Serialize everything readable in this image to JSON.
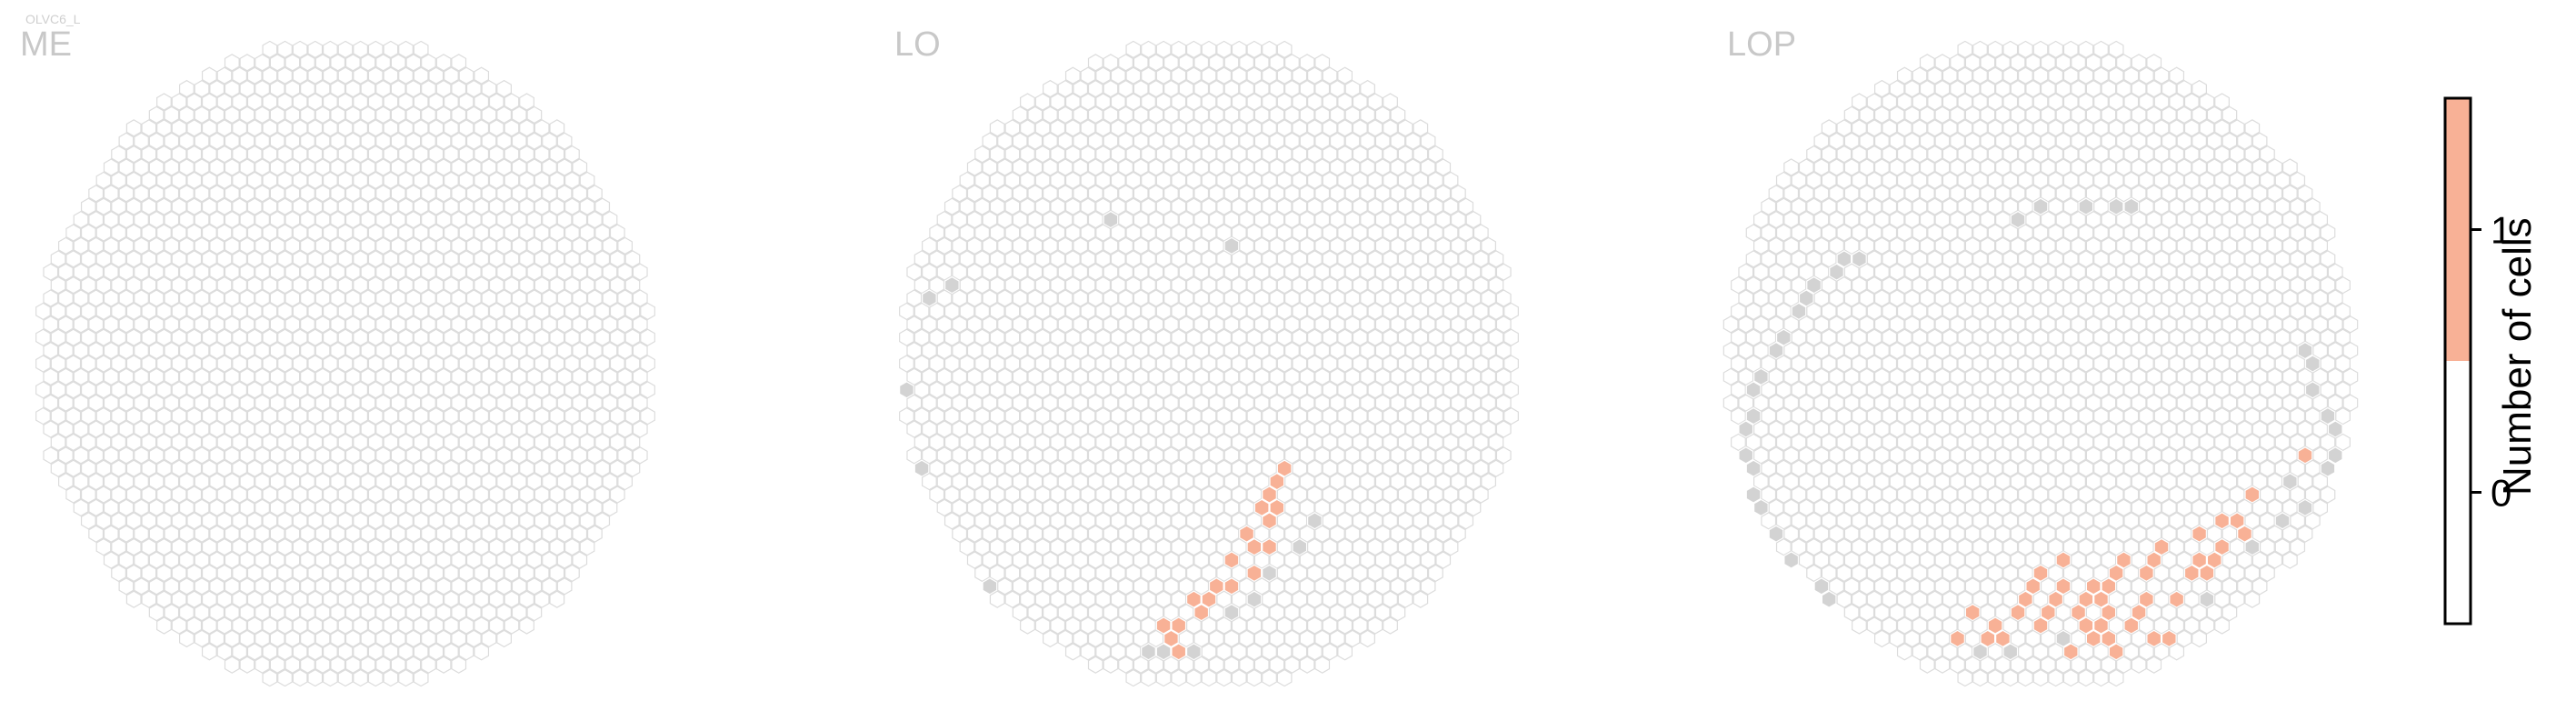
{
  "figure": {
    "tag": "OLVC6_L",
    "colors": {
      "empty_fill": "#ffffff",
      "empty_stroke": "#dcdcdc",
      "gray_fill": "#d3d3d3",
      "highlight_fill": "#f8b196",
      "highlight_stroke": "#ffffff",
      "label_color": "#c8c8c8"
    }
  },
  "chart_data": [
    {
      "type": "hexmap",
      "panel": "ME",
      "title": "ME",
      "grid_rows": 41,
      "grid_cols": 37,
      "value_counts": {
        "0": "all",
        "1": 0
      },
      "highlighted_cells": [],
      "gray_cells": []
    },
    {
      "type": "hexmap",
      "panel": "LO",
      "title": "LO",
      "highlighted_cells": [
        [
          0.72,
          0.87
        ],
        [
          0.69,
          0.82
        ],
        [
          0.72,
          0.8
        ],
        [
          0.76,
          0.76
        ],
        [
          0.8,
          0.73
        ],
        [
          0.84,
          0.69
        ],
        [
          0.88,
          0.66
        ],
        [
          0.92,
          0.63
        ],
        [
          0.94,
          0.58
        ],
        [
          0.98,
          0.54
        ],
        [
          1.0,
          0.49
        ],
        [
          0.99,
          0.44
        ],
        [
          0.99,
          0.4
        ],
        [
          1.03,
          0.37
        ],
        [
          1.01,
          0.32
        ],
        [
          0.96,
          0.45
        ],
        [
          0.92,
          0.52
        ],
        [
          0.86,
          0.6
        ],
        [
          0.82,
          0.66
        ],
        [
          0.76,
          0.7
        ],
        [
          0.66,
          0.82
        ]
      ],
      "gray_cells": [
        [
          0.48,
          -0.44
        ],
        [
          0.86,
          -0.38
        ],
        [
          -0.04,
          -0.2
        ],
        [
          0.0,
          -0.23
        ],
        [
          -0.16,
          0.12
        ],
        [
          -0.37,
          0.51
        ],
        [
          -0.28,
          0.91
        ],
        [
          0.62,
          0.9
        ],
        [
          0.66,
          0.9
        ],
        [
          0.7,
          0.89
        ],
        [
          0.76,
          0.88
        ],
        [
          0.88,
          0.75
        ],
        [
          0.94,
          0.7
        ],
        [
          0.98,
          0.64
        ],
        [
          1.06,
          0.56
        ],
        [
          1.12,
          0.47
        ]
      ]
    },
    {
      "type": "hexmap",
      "panel": "LOP",
      "title": "LOP",
      "highlighted_cells": [
        [
          0.55,
          0.82
        ],
        [
          0.59,
          0.78
        ],
        [
          0.63,
          0.83
        ],
        [
          0.66,
          0.8
        ],
        [
          0.7,
          0.83
        ],
        [
          0.72,
          0.78
        ],
        [
          0.74,
          0.73
        ],
        [
          0.76,
          0.68
        ],
        [
          0.78,
          0.63
        ],
        [
          0.82,
          0.81
        ],
        [
          0.84,
          0.76
        ],
        [
          0.84,
          0.71
        ],
        [
          0.86,
          0.66
        ],
        [
          0.88,
          0.6
        ],
        [
          0.9,
          0.86
        ],
        [
          0.92,
          0.81
        ],
        [
          0.92,
          0.76
        ],
        [
          0.94,
          0.71
        ],
        [
          0.96,
          0.66
        ],
        [
          0.98,
          0.82
        ],
        [
          1.0,
          0.77
        ],
        [
          1.0,
          0.72
        ],
        [
          1.02,
          0.67
        ],
        [
          1.04,
          0.62
        ],
        [
          1.06,
          0.58
        ],
        [
          1.08,
          0.8
        ],
        [
          1.1,
          0.75
        ],
        [
          1.12,
          0.7
        ],
        [
          1.14,
          0.65
        ],
        [
          1.16,
          0.6
        ],
        [
          1.18,
          0.55
        ],
        [
          1.22,
          0.7
        ],
        [
          1.24,
          0.64
        ],
        [
          1.26,
          0.59
        ],
        [
          1.28,
          0.53
        ],
        [
          1.32,
          0.6
        ],
        [
          1.34,
          0.55
        ],
        [
          1.36,
          0.5
        ],
        [
          1.4,
          0.46
        ],
        [
          1.42,
          0.52
        ],
        [
          1.46,
          0.4
        ],
        [
          1.6,
          0.28
        ],
        [
          1.0,
          0.84
        ],
        [
          1.04,
          0.86
        ],
        [
          1.2,
          0.82
        ],
        [
          1.3,
          0.65
        ],
        [
          1.14,
          0.82
        ],
        [
          0.96,
          0.86
        ]
      ],
      "gray_cells": [
        [
          0.8,
          -0.5
        ],
        [
          0.72,
          -0.46
        ],
        [
          0.94,
          -0.5
        ],
        [
          1.04,
          -0.48
        ],
        [
          1.08,
          -0.46
        ],
        [
          0.24,
          -0.33
        ],
        [
          0.2,
          -0.3
        ],
        [
          0.16,
          -0.27
        ],
        [
          0.13,
          -0.23
        ],
        [
          0.1,
          -0.2
        ],
        [
          0.06,
          -0.15
        ],
        [
          0.02,
          -0.1
        ],
        [
          -0.02,
          -0.05
        ],
        [
          -0.05,
          0.02
        ],
        [
          -0.06,
          0.08
        ],
        [
          -0.08,
          0.14
        ],
        [
          -0.09,
          0.2
        ],
        [
          -0.1,
          0.27
        ],
        [
          -0.1,
          0.32
        ],
        [
          -0.09,
          0.38
        ],
        [
          -0.08,
          0.44
        ],
        [
          -0.02,
          0.55
        ],
        [
          0.04,
          0.62
        ],
        [
          0.1,
          0.68
        ],
        [
          0.16,
          0.73
        ],
        [
          1.58,
          -0.05
        ],
        [
          1.62,
          0.02
        ],
        [
          1.64,
          0.08
        ],
        [
          1.66,
          0.14
        ],
        [
          1.68,
          0.2
        ],
        [
          1.7,
          0.26
        ],
        [
          1.66,
          0.34
        ],
        [
          1.6,
          0.42
        ],
        [
          1.54,
          0.48
        ],
        [
          1.44,
          0.58
        ],
        [
          1.3,
          0.7
        ],
        [
          1.14,
          0.86
        ],
        [
          0.7,
          0.86
        ],
        [
          0.62,
          0.86
        ],
        [
          0.86,
          0.86
        ],
        [
          1.56,
          0.38
        ]
      ]
    }
  ],
  "colorbar": {
    "title": "Number of cells",
    "ticks": [
      {
        "value": 1,
        "label": "1"
      },
      {
        "value": 0,
        "label": "0"
      }
    ],
    "range": [
      -0.5,
      1.5
    ],
    "segments": [
      {
        "from": -0.5,
        "to": 0.5,
        "color": "#ffffff"
      },
      {
        "from": 0.5,
        "to": 1.5,
        "color": "#f8b196"
      }
    ]
  }
}
